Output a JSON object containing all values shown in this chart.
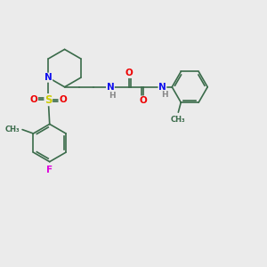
{
  "bg_color": "#ebebeb",
  "bond_color": "#3a6b4a",
  "bond_width": 1.2,
  "atom_colors": {
    "N": "#1010ee",
    "O": "#ee0000",
    "S": "#cccc00",
    "F": "#dd00dd",
    "C": "#3a6b4a",
    "H": "#888888"
  },
  "font_size": 7.5,
  "fig_size": [
    3.0,
    3.0
  ],
  "dpi": 100
}
